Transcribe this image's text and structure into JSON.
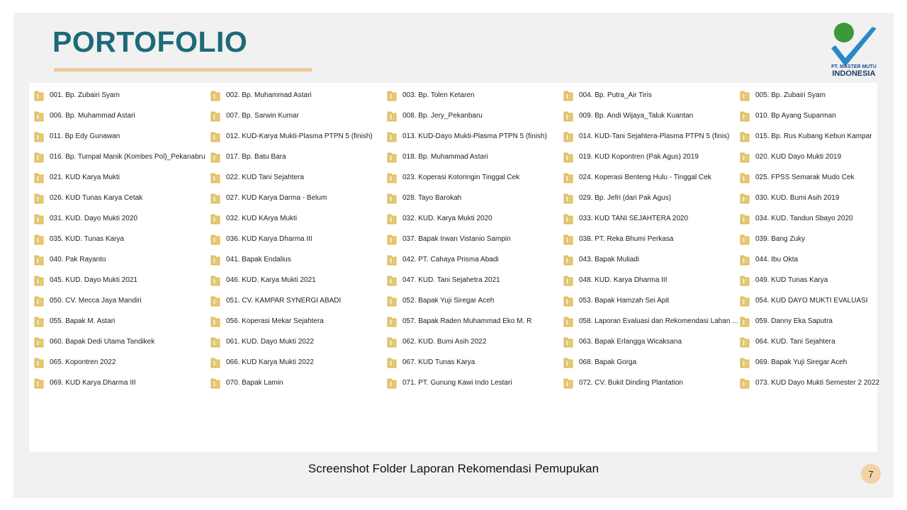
{
  "header": {
    "title": "PORTOFOLIO",
    "logo_line1": "PT. MASTER MUTU",
    "logo_line2": "INDONESIA"
  },
  "folders": [
    [
      "001. Bp. Zubairi Syam",
      "002. Bp. Muhammad Astari",
      "003. Bp. Tolen Ketaren",
      "004. Bp. Putra_Air Tiris",
      "005. Bp. Zubairi Syam"
    ],
    [
      "006. Bp. Muhammad Astari",
      "007. Bp. Sarwin Kumar",
      "008. Bp. Jery_Pekanbaru",
      "009. Bp. Andi Wijaya_Taluk Kuantan",
      "010. Bp Ayang Suparman"
    ],
    [
      "011. Bp Edy Gunawan",
      "012. KUD-Karya Mukti-Plasma PTPN 5 (finish)",
      "013. KUD-Dayo Mukti-Plasma PTPN 5 (finish)",
      "014. KUD-Tani Sejahtera-Plasma PTPN 5 (finis)",
      "015. Bp. Rus Kubang Kebun Kampar"
    ],
    [
      "016. Bp. Tumpal Manik (Kombes Pol)_Pekanabru",
      "017. Bp. Batu Bara",
      "018. Bp. Muhammad Astari",
      "019. KUD Kopontren (Pak Agus) 2019",
      "020. KUD Dayo Mukti 2019"
    ],
    [
      "021. KUD Karya Mukti",
      "022. KUD Tani Sejahtera",
      "023. Koperasi Kotoringin Tinggal Cek",
      "024. Koperasi Benteng Hulu - Tinggal Cek",
      "025. FPSS Semarak Mudo Cek"
    ],
    [
      "026. KUD Tunas Karya Cetak",
      "027. KUD Karya Darma - Belum",
      "028. Tayo Barokah",
      "029. Bp. Jefri (dari Pak Agus)",
      "030. KUD. Bumi Asih 2019"
    ],
    [
      "031. KUD. Dayo Mukti 2020",
      "032. KUD KArya Mukti",
      "032. KUD. Karya Mukti 2020",
      "033. KUD TANI SEJAHTERA 2020",
      "034. KUD. Tandun Sbayo 2020"
    ],
    [
      "035. KUD. Tunas Karya",
      "036. KUD Karya Dharma III",
      "037. Bapak Irwan Vistanio Sampin",
      "038. PT. Reka Bhumi Perkasa",
      "039. Bang Zuky"
    ],
    [
      "040. Pak Rayanto",
      "041. Bapak Endalius",
      "042. PT. Cahaya Prisma Abadi",
      "043. Bapak Muliadi",
      "044. Ibu Okta"
    ],
    [
      "045. KUD. Dayo Mukti 2021",
      "046. KUD. Karya Mukti 2021",
      "047. KUD. Tani Sejahetra 2021",
      "048. KUD. Karya Dharma III",
      "049. KUD Tunas Karya"
    ],
    [
      "050. CV. Mecca Jaya Mandiri",
      "051. CV. KAMPAR SYNERGI ABADI",
      "052. Bapak Yuji Siregar Aceh",
      "053. Bapak Hamzah Sei Apit",
      "054. KUD DAYO MUKTI EVALUASI"
    ],
    [
      "055. Bapak M. Astari",
      "056. Koperasi Mekar Sejahtera",
      "057. Bapak Raden Muhammad Eko M. R",
      "058. Laporan Evaluasi dan Rekomendasi Lahan ...",
      "059. Danny Eka Saputra"
    ],
    [
      "060. Bapak Dedi Utama Tandikek",
      "061. KUD. Dayo Mukti 2022",
      "062. KUD. Bumi Asih 2022",
      "063. Bapak Erlangga Wicaksana",
      "064. KUD. Tani Sejahtera"
    ],
    [
      "065. Kopontren 2022",
      "066. KUD Karya Mukti 2022",
      "067. KUD Tunas Karya",
      "068. Bapak Gorga",
      "069. Bapak Yuji Siregar Aceh"
    ],
    [
      "069. KUD Karya Dharma III",
      "070. Bapak Lamin",
      "071. PT. Gunung Kawi Indo Lestari",
      "072. CV. Bukit Dinding Plantation",
      "073. KUD Dayo Mukti Semester 2 2022"
    ]
  ],
  "caption": "Screenshot Folder Laporan Rekomendasi Pemupukan",
  "page_number": "7"
}
